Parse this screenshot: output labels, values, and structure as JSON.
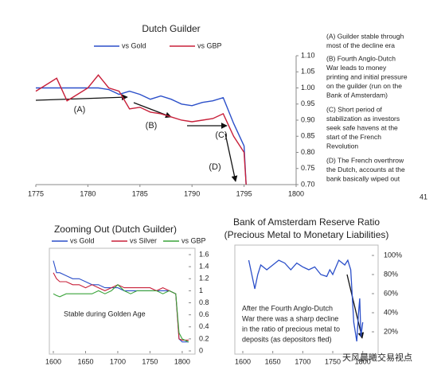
{
  "chart_data": [
    {
      "type": "line",
      "title": "Dutch Guilder",
      "x": [
        1775,
        1776,
        1777,
        1778,
        1779,
        1780,
        1781,
        1782,
        1783,
        1784,
        1785,
        1786,
        1787,
        1788,
        1789,
        1790,
        1791,
        1792,
        1793,
        1794,
        1795,
        1795.2
      ],
      "series": [
        {
          "name": "vs Gold",
          "color": "#2b4fc9",
          "values": [
            1.0,
            1.0,
            1.0,
            1.0,
            1.0,
            1.0,
            1.0,
            0.995,
            0.98,
            0.99,
            0.98,
            0.965,
            0.975,
            0.965,
            0.95,
            0.945,
            0.955,
            0.96,
            0.97,
            0.89,
            0.82,
            0.7
          ]
        },
        {
          "name": "vs GBP",
          "color": "#c8203a",
          "values": [
            0.99,
            1.01,
            1.03,
            0.96,
            0.98,
            1.0,
            1.04,
            1.0,
            0.99,
            0.935,
            0.94,
            0.925,
            0.92,
            0.91,
            0.9,
            0.895,
            0.9,
            0.905,
            0.92,
            0.85,
            0.8,
            0.7
          ]
        }
      ],
      "xlim": [
        1775,
        1800
      ],
      "xticks": [
        1775,
        1780,
        1785,
        1790,
        1795,
        1800
      ],
      "ylim": [
        0.7,
        1.1
      ],
      "yticks": [
        {
          "value": 0.7,
          "label": "0.70"
        },
        {
          "value": 0.75,
          "label": "0.75"
        },
        {
          "value": 0.8,
          "label": "0.80"
        },
        {
          "value": 0.85,
          "label": "0.85"
        },
        {
          "value": 0.9,
          "label": "0.90"
        },
        {
          "value": 0.95,
          "label": "0.95"
        },
        {
          "value": 1.0,
          "label": "1.00"
        },
        {
          "value": 1.05,
          "label": "1.05"
        },
        {
          "value": 1.1,
          "label": "1.10"
        }
      ],
      "annotations": [
        "(A)",
        "(B)",
        "(C)",
        "(D)"
      ],
      "notes": [
        [
          "(A) Guilder stable through",
          "most of the decline era"
        ],
        [
          "(B) Fourth Anglo-Dutch",
          "War leads to money",
          "printing and initial pressure",
          "on the guilder (run on the",
          "Bank of Amsterdam)"
        ],
        [
          "(C) Short period of",
          "stabilization as investors",
          "seek safe havens at the",
          "start of the French",
          "Revolution"
        ],
        [
          "(D) The French overthrow",
          "the Dutch, accounts at the",
          "bank basically wiped out"
        ]
      ]
    },
    {
      "type": "line",
      "title": "Zooming Out (Dutch Guilder)",
      "x": [
        1600,
        1605,
        1610,
        1620,
        1630,
        1640,
        1650,
        1660,
        1670,
        1680,
        1690,
        1700,
        1710,
        1720,
        1730,
        1740,
        1750,
        1760,
        1770,
        1780,
        1790,
        1795,
        1800,
        1810
      ],
      "series": [
        {
          "name": "vs Gold",
          "color": "#2b4fc9",
          "values": [
            1.5,
            1.3,
            1.3,
            1.25,
            1.2,
            1.2,
            1.15,
            1.1,
            1.1,
            1.05,
            1.05,
            1.05,
            1.0,
            1.0,
            1.0,
            1.0,
            1.0,
            1.0,
            1.0,
            1.0,
            0.95,
            0.2,
            0.15,
            0.15
          ]
        },
        {
          "name": "vs Silver",
          "color": "#c8203a",
          "values": [
            1.3,
            1.2,
            1.15,
            1.15,
            1.1,
            1.1,
            1.05,
            1.1,
            1.05,
            1.0,
            1.05,
            1.1,
            1.05,
            1.05,
            1.05,
            1.05,
            1.05,
            1.0,
            1.05,
            1.0,
            0.95,
            0.2,
            0.18,
            0.18
          ]
        },
        {
          "name": "vs GBP",
          "color": "#3aa33a",
          "values": [
            0.95,
            0.92,
            0.9,
            0.95,
            0.95,
            0.95,
            0.95,
            0.95,
            1.0,
            0.95,
            1.0,
            1.1,
            1.0,
            0.95,
            1.0,
            1.0,
            1.0,
            1.0,
            0.95,
            1.0,
            0.95,
            0.3,
            0.2,
            0.15
          ]
        }
      ],
      "xlim": [
        1600,
        1810
      ],
      "xticks": [
        1600,
        1650,
        1700,
        1750,
        1800
      ],
      "ylim": [
        0,
        1.6
      ],
      "yticks": [
        0,
        0.2,
        0.4,
        0.6,
        0.8,
        1,
        1.2,
        1.4,
        1.6
      ],
      "annotations": [
        "Stable during Golden Age"
      ]
    },
    {
      "type": "line",
      "title": "Bank of Amsterdam Reserve Ratio",
      "subtitle": "(Precious Metal to Monetary Liabilities)",
      "x": [
        1610,
        1615,
        1620,
        1625,
        1630,
        1640,
        1650,
        1660,
        1670,
        1680,
        1690,
        1700,
        1710,
        1720,
        1730,
        1740,
        1745,
        1750,
        1760,
        1770,
        1775,
        1780,
        1785,
        1790,
        1793,
        1795,
        1797,
        1800
      ],
      "series": [
        {
          "name": "Reserve Ratio",
          "color": "#2b4fc9",
          "values": [
            95,
            80,
            65,
            80,
            90,
            85,
            90,
            95,
            92,
            85,
            92,
            88,
            85,
            88,
            80,
            78,
            85,
            80,
            95,
            90,
            95,
            85,
            30,
            10,
            40,
            55,
            15,
            30
          ]
        }
      ],
      "xlim": [
        1600,
        1815
      ],
      "xticks": [
        1600,
        1650,
        1700,
        1750,
        1800
      ],
      "ylim": [
        0,
        110
      ],
      "yticks": [
        {
          "value": 20,
          "label": "20%"
        },
        {
          "value": 40,
          "label": "40%"
        },
        {
          "value": 60,
          "label": "60%"
        },
        {
          "value": 80,
          "label": "80%"
        },
        {
          "value": 100,
          "label": "100%"
        }
      ],
      "annotations": [
        "After the Fourth Anglo-Dutch",
        "War there was a sharp decline",
        "in the ratio of precious metal to",
        "deposits (as depositors fled)"
      ]
    }
  ],
  "page_number": "41",
  "watermark": "天风晨曦交易视点"
}
